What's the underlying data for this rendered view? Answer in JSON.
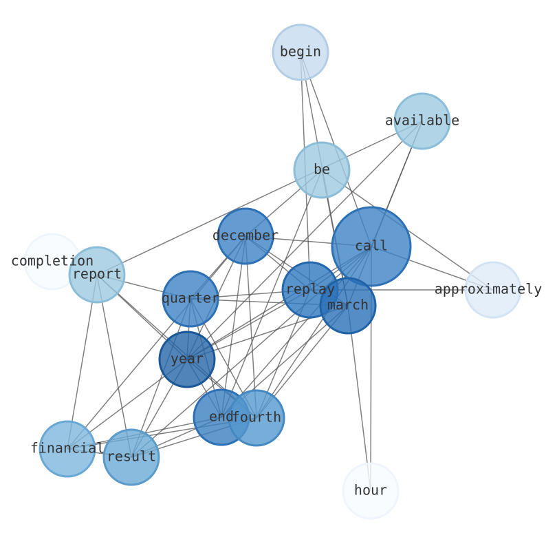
{
  "nodes": [
    {
      "label": "begin"
    },
    {
      "label": "available"
    },
    {
      "label": "be"
    },
    {
      "label": "december"
    },
    {
      "label": "call"
    },
    {
      "label": "completion"
    },
    {
      "label": "report"
    },
    {
      "label": "replay"
    },
    {
      "label": "approximately"
    },
    {
      "label": "quarter"
    },
    {
      "label": "march"
    },
    {
      "label": "year"
    },
    {
      "label": "end"
    },
    {
      "label": "fourth"
    },
    {
      "label": "financial"
    },
    {
      "label": "result"
    },
    {
      "label": "hour"
    }
  ]
}
